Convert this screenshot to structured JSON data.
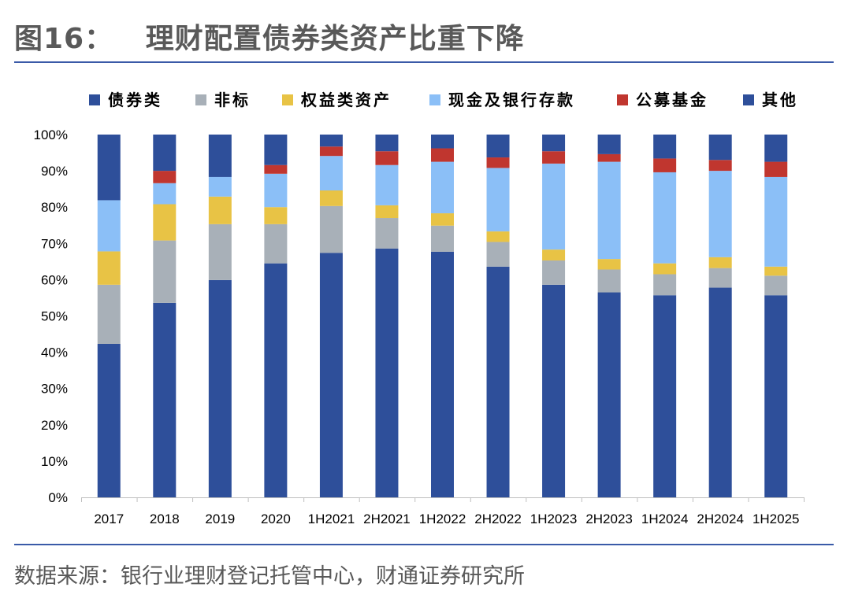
{
  "title": "图16：   理财配置债券类资产比重下降",
  "source": "数据来源：银行业理财登记托管中心，财通证券研究所",
  "chart_data": {
    "type": "bar",
    "stacked": true,
    "categories": [
      "2017",
      "2018",
      "2019",
      "2020",
      "1H2021",
      "2H2021",
      "1H2022",
      "2H2022",
      "1H2023",
      "2H2023",
      "1H2024",
      "2H2024",
      "1H2025"
    ],
    "ylim": [
      0,
      100
    ],
    "yticks": [
      "0%",
      "10%",
      "20%",
      "30%",
      "40%",
      "50%",
      "60%",
      "70%",
      "80%",
      "90%",
      "100%"
    ],
    "legend_position": "top",
    "grid": false,
    "series": [
      {
        "name": "债券类",
        "color": "#2E4F9A",
        "values": [
          42.3,
          53.6,
          59.9,
          64.5,
          67.4,
          68.6,
          67.7,
          63.6,
          58.6,
          56.5,
          55.7,
          57.8,
          55.7
        ]
      },
      {
        "name": "非标",
        "color": "#A8B0B8",
        "values": [
          16.3,
          17.2,
          15.4,
          10.8,
          12.9,
          8.4,
          7.2,
          6.8,
          6.7,
          6.3,
          5.8,
          5.4,
          5.4
        ]
      },
      {
        "name": "权益类资产",
        "color": "#E8C345",
        "values": [
          9.2,
          10.0,
          7.6,
          4.7,
          4.3,
          3.5,
          3.4,
          2.9,
          3.0,
          2.9,
          3.0,
          3.0,
          2.5
        ]
      },
      {
        "name": "现金及银行存款",
        "color": "#8BBFF7",
        "values": [
          14.1,
          5.8,
          5.4,
          9.2,
          9.5,
          11.1,
          14.2,
          17.5,
          23.7,
          26.8,
          25.1,
          23.8,
          24.7
        ]
      },
      {
        "name": "公募基金",
        "color": "#C0362F",
        "values": [
          0,
          3.4,
          0,
          2.4,
          2.6,
          3.8,
          3.7,
          2.9,
          3.4,
          2.1,
          3.8,
          3.0,
          4.2
        ]
      },
      {
        "name": "其他",
        "color": "#2E4F9A",
        "values": [
          18.1,
          10.0,
          11.7,
          8.4,
          3.3,
          4.6,
          3.8,
          6.3,
          4.6,
          5.4,
          6.6,
          7.0,
          7.5
        ]
      }
    ]
  }
}
